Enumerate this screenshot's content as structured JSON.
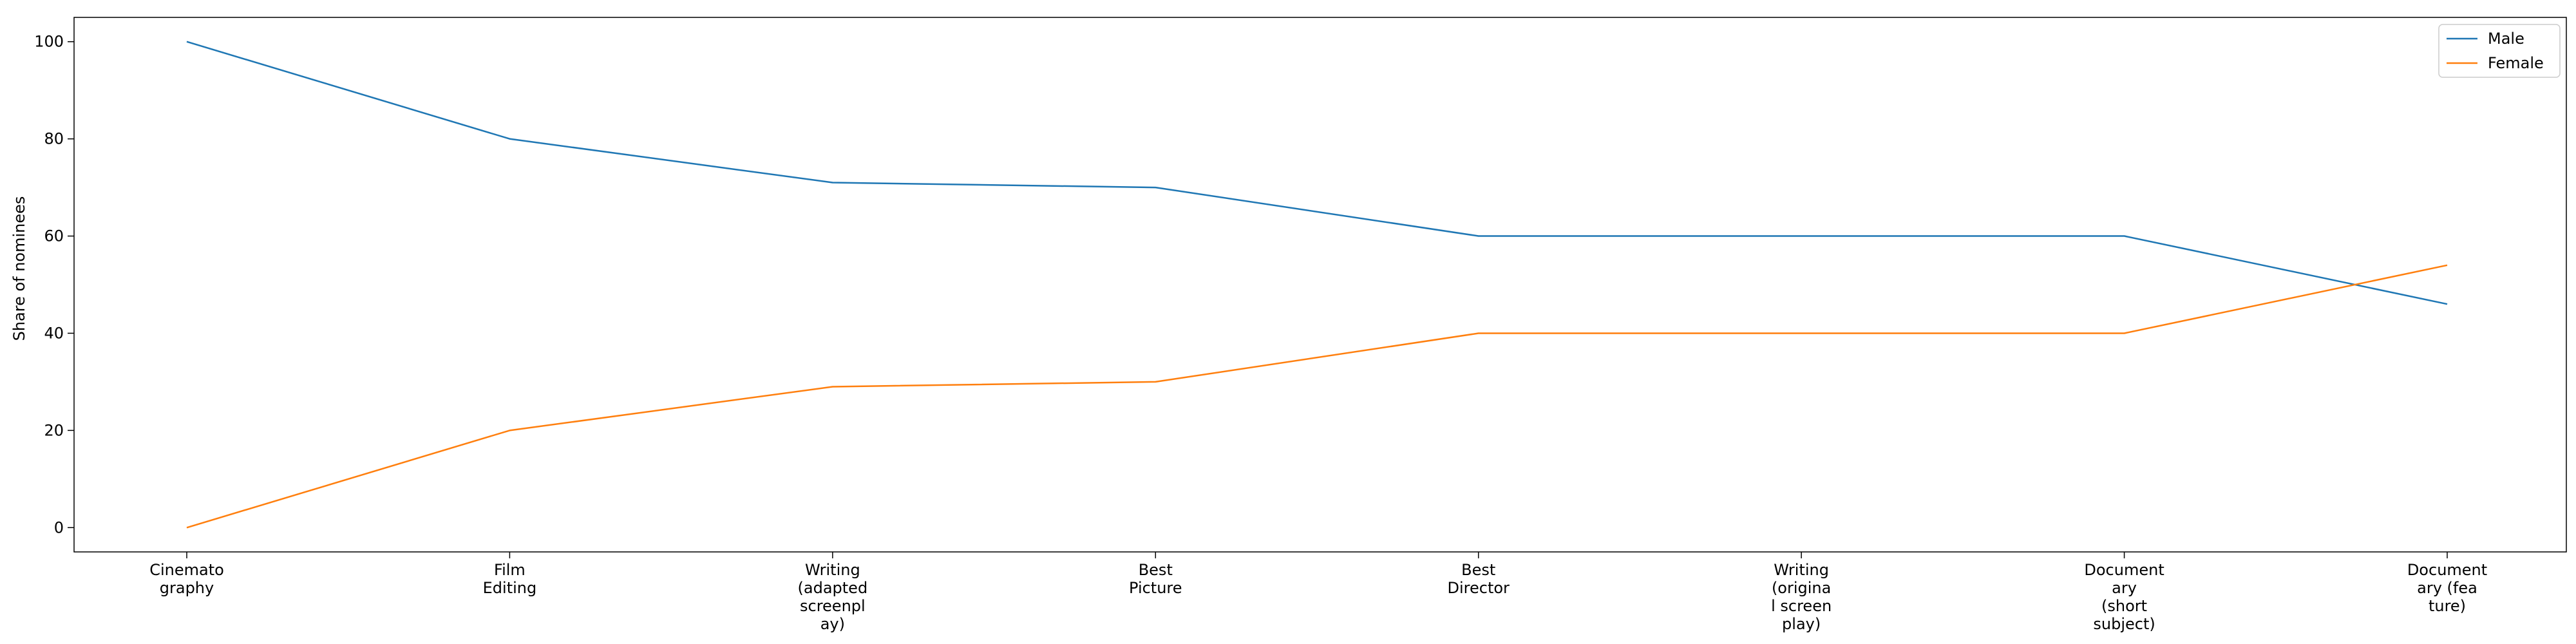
{
  "chart_data": {
    "type": "line",
    "title": "",
    "xlabel": "",
    "ylabel": "Share of nominees",
    "categories": [
      "Cinemato\ngraphy",
      "Film\nEditing",
      "Writing\n(adapted\nscreenpl\nay)",
      "Best\nPicture",
      "Best\nDirector",
      "Writing\n(origina\nl screen\nplay)",
      "Document\nary\n(short\nsubject)",
      "Document\nary (fea\nture)"
    ],
    "series": [
      {
        "name": "Male",
        "color": "#1f77b4",
        "values": [
          100,
          80,
          71,
          70,
          60,
          60,
          60,
          46
        ]
      },
      {
        "name": "Female",
        "color": "#ff7f0e",
        "values": [
          0,
          20,
          29,
          30,
          40,
          40,
          40,
          54
        ]
      }
    ],
    "yticks": [
      0,
      20,
      40,
      60,
      80,
      100
    ],
    "ylim": [
      -5,
      105
    ],
    "grid": false,
    "legend_position": "top-right"
  }
}
